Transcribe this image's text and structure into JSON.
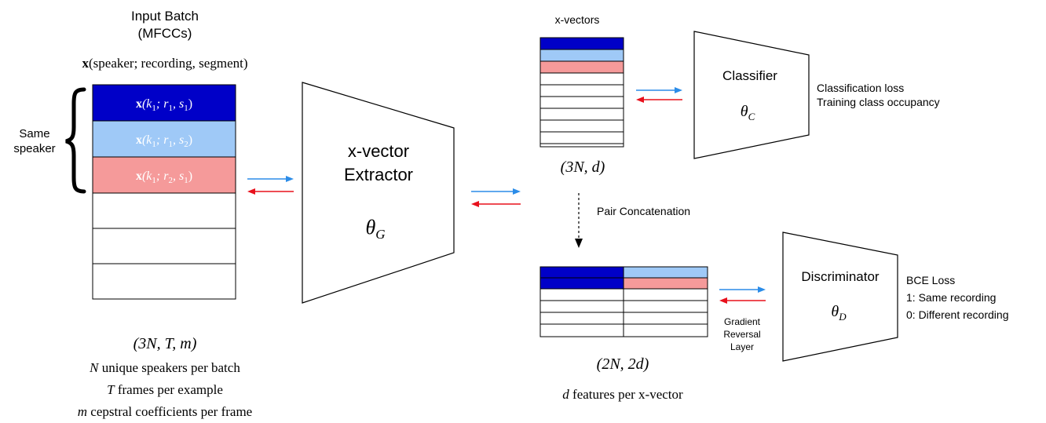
{
  "input": {
    "title_line1": "Input Batch",
    "title_line2": "(MFCCs)",
    "notation_bold": "x",
    "notation_rest": "(speaker; recording, segment)",
    "rows": [
      {
        "label_bold": "x",
        "label_rest": "(k",
        "sub1": "1",
        "mid": "; r",
        "sub2": "1",
        "mid2": ", s",
        "sub3": "1",
        "tail": ")",
        "color": "#0000c8"
      },
      {
        "label_bold": "x",
        "label_rest": "(k",
        "sub1": "1",
        "mid": "; r",
        "sub2": "1",
        "mid2": ", s",
        "sub3": "2",
        "tail": ")",
        "color": "#9fc9f7"
      },
      {
        "label_bold": "x",
        "label_rest": "(k",
        "sub1": "1",
        "mid": "; r",
        "sub2": "2",
        "mid2": ", s",
        "sub3": "1",
        "tail": ")",
        "color": "#f59a9a"
      }
    ],
    "empty_row_count": 3,
    "brace_label_line1": "Same",
    "brace_label_line2": "speaker",
    "shape_text": "(3N, T, m)",
    "desc_line1_var": "N",
    "desc_line1_rest": " unique speakers per batch",
    "desc_line2_var": "T",
    "desc_line2_rest": " frames per example",
    "desc_line3_var": "m",
    "desc_line3_rest": " cepstral coefficients per frame"
  },
  "extractor": {
    "label_line1": "x-vector",
    "label_line2": "Extractor",
    "param": "θ",
    "param_sub": "G"
  },
  "xvectors": {
    "title": "x-vectors",
    "colors": [
      "#0000c8",
      "#9fc9f7",
      "#f59a9a"
    ],
    "empty_row_count": 7,
    "shape_text": "(3N, d)"
  },
  "classifier": {
    "label": "Classifier",
    "param": "θ",
    "param_sub": "C",
    "loss_line1": "Classification loss",
    "loss_line2": "Training class occupancy"
  },
  "pair": {
    "label": "Pair Concatenation",
    "left_colors": [
      "#0000c8",
      "#0000c8"
    ],
    "right_colors": [
      "#9fc9f7",
      "#f59a9a"
    ],
    "empty_row_count": 4,
    "shape_text": "(2N, 2d)",
    "desc_var": "d",
    "desc_rest": " features per x-vector"
  },
  "discriminator": {
    "label": "Discriminator",
    "param": "θ",
    "param_sub": "D",
    "grl_line1": "Gradient",
    "grl_line2": "Reversal",
    "grl_line3": "Layer",
    "loss_line1": "BCE Loss",
    "loss_line2": "1: Same recording",
    "loss_line3": "0: Different recording"
  },
  "colors": {
    "forward_arrow": "#2b8ce8",
    "backward_arrow": "#e8101c",
    "outline": "#000000"
  }
}
